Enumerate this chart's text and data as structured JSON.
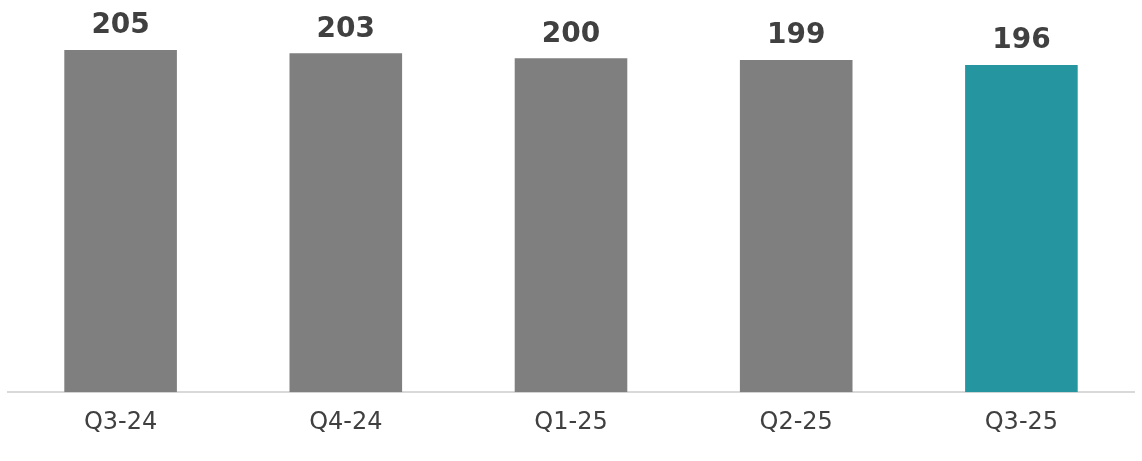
{
  "chart_data": {
    "type": "bar",
    "categories": [
      "Q3-24",
      "Q4-24",
      "Q1-25",
      "Q2-25",
      "Q3-25"
    ],
    "values": [
      205,
      203,
      200,
      199,
      196
    ],
    "colors": [
      "#7f7f7f",
      "#7f7f7f",
      "#7f7f7f",
      "#7f7f7f",
      "#2596a0"
    ],
    "ylim": [
      0,
      205
    ],
    "data_labels": true,
    "grid": false,
    "legend": false
  }
}
